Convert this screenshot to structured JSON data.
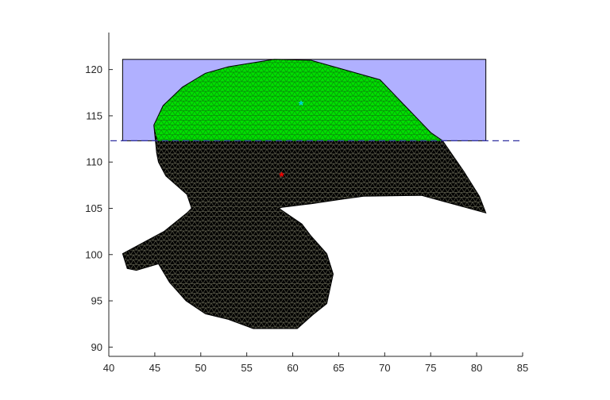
{
  "chart_data": {
    "type": "area",
    "xlim": [
      40,
      85
    ],
    "ylim": [
      89,
      124
    ],
    "grid": false,
    "x_ticks": [
      "40",
      "45",
      "50",
      "55",
      "60",
      "65",
      "70",
      "75",
      "80",
      "85"
    ],
    "y_ticks": [
      "90",
      "95",
      "100",
      "105",
      "110",
      "115",
      "120"
    ],
    "colors": {
      "region": "#000000",
      "mesh": "#6b6b55",
      "submerged": "#00e000",
      "submerged_mesh": "#0a9a0a",
      "rectangle": "#b0b0ff",
      "waterline": "#3030a0",
      "marker_red": "#ff0000",
      "marker_cyan": "#00cfe0"
    },
    "rectangle": {
      "x": [
        41.5,
        81
      ],
      "y": [
        112.3,
        121.1
      ]
    },
    "waterline_y": 112.3,
    "outline": [
      [
        44.9,
        114.0
      ],
      [
        45.9,
        116.1
      ],
      [
        48.0,
        118.1
      ],
      [
        50.5,
        119.6
      ],
      [
        53.0,
        120.3
      ],
      [
        58.0,
        121.1
      ],
      [
        62.0,
        121.0
      ],
      [
        69.5,
        118.9
      ],
      [
        75.0,
        113.2
      ],
      [
        76.3,
        112.3
      ],
      [
        78.6,
        109.0
      ],
      [
        80.3,
        106.3
      ],
      [
        81.0,
        104.5
      ],
      [
        74.0,
        106.4
      ],
      [
        67.7,
        106.3
      ],
      [
        65.5,
        106.0
      ],
      [
        62.0,
        105.5
      ],
      [
        58.8,
        105.1
      ],
      [
        58.5,
        105.0
      ],
      [
        61.0,
        103.3
      ],
      [
        62.0,
        102.0
      ],
      [
        63.7,
        100.1
      ],
      [
        64.4,
        97.9
      ],
      [
        63.7,
        94.7
      ],
      [
        62.2,
        93.5
      ],
      [
        60.5,
        92.0
      ],
      [
        58.0,
        92.0
      ],
      [
        55.7,
        92.0
      ],
      [
        53.0,
        93.0
      ],
      [
        50.5,
        93.6
      ],
      [
        48.4,
        95.0
      ],
      [
        46.6,
        97.0
      ],
      [
        45.4,
        99.0
      ],
      [
        43.0,
        98.3
      ],
      [
        42.0,
        98.5
      ],
      [
        41.5,
        100.1
      ],
      [
        46.0,
        102.5
      ],
      [
        48.5,
        104.5
      ],
      [
        49.0,
        105.0
      ],
      [
        48.5,
        106.5
      ],
      [
        46.2,
        108.5
      ],
      [
        45.4,
        110.0
      ],
      [
        45.2,
        111.0
      ]
    ],
    "submerged_outline": [
      [
        45.3,
        112.3
      ],
      [
        44.9,
        114.0
      ],
      [
        45.9,
        116.1
      ],
      [
        48.0,
        118.1
      ],
      [
        50.5,
        119.6
      ],
      [
        53.0,
        120.3
      ],
      [
        58.0,
        121.1
      ],
      [
        62.0,
        121.0
      ],
      [
        69.5,
        118.9
      ],
      [
        75.0,
        113.2
      ],
      [
        76.3,
        112.3
      ]
    ],
    "markers": [
      {
        "x": 58.8,
        "y": 108.4,
        "symbol": "*",
        "color": "#ff0000"
      },
      {
        "x": 60.9,
        "y": 116.1,
        "symbol": "*",
        "color": "#00cfe0"
      }
    ]
  }
}
